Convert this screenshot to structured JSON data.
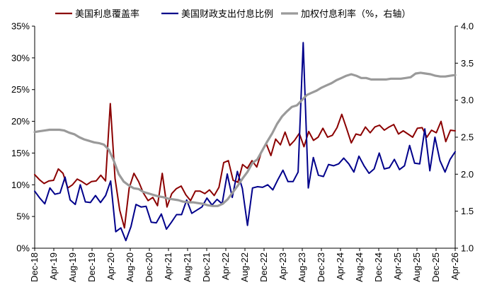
{
  "chart_data": {
    "type": "line",
    "title": "",
    "x_labels": [
      "Dec-18",
      "Apr-19",
      "Aug-19",
      "Dec-19",
      "Apr-20",
      "Aug-20",
      "Dec-20",
      "Apr-21",
      "Aug-21",
      "Dec-21",
      "Apr-22",
      "Aug-22",
      "Dec-22",
      "Apr-23",
      "Aug-23",
      "Dec-23",
      "Apr-24",
      "Aug-24",
      "Dec-24",
      "Apr-25",
      "Aug-25",
      "Dec-25",
      "Apr-26"
    ],
    "left_axis": {
      "ylim": [
        0,
        35
      ],
      "ticks": [
        "0%",
        "5%",
        "10%",
        "15%",
        "20%",
        "25%",
        "30%",
        "35%"
      ],
      "tick_values": [
        0,
        5,
        10,
        15,
        20,
        25,
        30,
        35
      ]
    },
    "right_axis": {
      "ylim": [
        1.0,
        4.0
      ],
      "ticks": [
        "1.0",
        "1.5",
        "2.0",
        "2.5",
        "3.0",
        "3.5",
        "4.0"
      ],
      "tick_values": [
        1.0,
        1.5,
        2.0,
        2.5,
        3.0,
        3.5,
        4.0
      ]
    },
    "x_start": "Dec-18",
    "series": [
      {
        "name": "美国利息覆盖率",
        "color": "#8b0000",
        "axis": "left",
        "values": [
          11.6,
          10.8,
          10.2,
          10.6,
          10.7,
          12.5,
          11.8,
          9.5,
          10.0,
          10.9,
          10.5,
          10.0,
          10.5,
          10.6,
          11.5,
          10.6,
          22.8,
          11.0,
          6.0,
          3.2,
          9.5,
          11.8,
          10.5,
          8.7,
          7.5,
          8.0,
          6.7,
          11.8,
          6.5,
          8.6,
          9.4,
          9.8,
          8.4,
          7.5,
          9.0,
          9.0,
          8.6,
          9.2,
          8.3,
          9.6,
          13.5,
          13.8,
          10.7,
          10.4,
          13.2,
          12.6,
          13.8,
          12.8,
          15.2,
          16.5,
          14.6,
          17.2,
          16.3,
          18.3,
          16.2,
          17.0,
          18.1,
          16.0,
          18.4,
          17.0,
          17.5,
          18.9,
          17.5,
          17.8,
          19.0,
          21.1,
          18.9,
          16.6,
          18.0,
          17.8,
          19.1,
          18.2,
          19.1,
          19.4,
          18.6,
          19.1,
          19.5,
          18.0,
          18.5,
          18.0,
          17.5,
          18.9,
          19.0,
          17.5,
          18.6,
          18.2,
          20.0,
          16.8,
          18.6,
          18.5
        ]
      },
      {
        "name": "美国财政支出付息比例",
        "color": "#00008b",
        "axis": "left",
        "values": [
          9.0,
          7.9,
          7.0,
          9.5,
          8.5,
          8.7,
          11.2,
          7.6,
          6.9,
          10.0,
          7.3,
          7.2,
          8.3,
          7.2,
          8.3,
          10.6,
          2.6,
          3.2,
          1.2,
          3.4,
          6.9,
          6.5,
          6.6,
          4.1,
          4.0,
          5.4,
          3.0,
          4.1,
          5.3,
          5.3,
          7.6,
          5.5,
          6.0,
          6.5,
          7.9,
          6.8,
          7.7,
          7.0,
          11.7,
          8.0,
          12.1,
          9.4,
          3.6,
          9.5,
          9.7,
          9.6,
          10.0,
          9.2,
          10.8,
          12.3,
          10.5,
          10.5,
          12.0,
          32.4,
          9.5,
          14.3,
          11.5,
          11.3,
          13.2,
          13.0,
          13.3,
          14.2,
          13.3,
          12.0,
          14.5,
          13.0,
          11.8,
          12.5,
          15.0,
          12.5,
          12.7,
          14.0,
          12.4,
          13.0,
          16.2,
          13.4,
          13.3,
          18.8,
          12.2,
          17.5,
          13.8,
          12.0,
          14.0,
          15.2
        ]
      },
      {
        "name": "加权付息利率（%，右轴）",
        "color": "#9a9a9a",
        "axis": "right",
        "values": [
          2.57,
          2.58,
          2.59,
          2.6,
          2.6,
          2.6,
          2.59,
          2.56,
          2.54,
          2.5,
          2.47,
          2.45,
          2.43,
          2.42,
          2.4,
          2.33,
          2.18,
          2.0,
          1.9,
          1.85,
          1.81,
          1.8,
          1.76,
          1.74,
          1.72,
          1.7,
          1.69,
          1.67,
          1.66,
          1.65,
          1.63,
          1.62,
          1.62,
          1.61,
          1.6,
          1.58,
          1.57,
          1.57,
          1.6,
          1.66,
          1.75,
          1.84,
          1.94,
          2.03,
          2.15,
          2.2,
          2.32,
          2.44,
          2.55,
          2.68,
          2.78,
          2.85,
          2.91,
          2.93,
          3.0,
          3.07,
          3.1,
          3.13,
          3.17,
          3.2,
          3.23,
          3.27,
          3.3,
          3.33,
          3.35,
          3.33,
          3.3,
          3.3,
          3.28,
          3.28,
          3.28,
          3.28,
          3.29,
          3.29,
          3.29,
          3.3,
          3.31,
          3.36,
          3.37,
          3.36,
          3.35,
          3.33,
          3.32,
          3.32,
          3.33,
          3.34
        ]
      }
    ]
  }
}
